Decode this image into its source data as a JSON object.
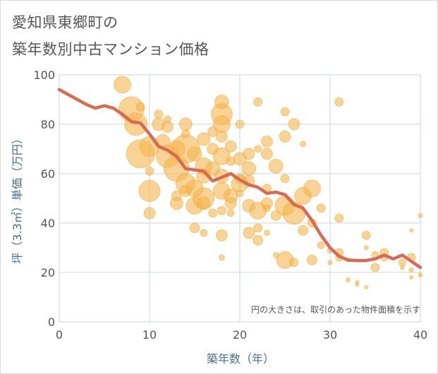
{
  "title_line1": "愛知県東郷町の",
  "title_line2": "築年数別中古マンション価格",
  "colors": {
    "bubble_fill": "#f5b54f",
    "bubble_stroke": "#f0a530",
    "line": "#d96a52",
    "grid": "#c8d6e2",
    "axis_label": "#4a6f8a"
  },
  "chart_data": {
    "type": "scatter",
    "xlabel": "築年数（年）",
    "ylabel": "坪（3.3㎡）単価（万円）",
    "xlim": [
      0,
      40
    ],
    "ylim": [
      0,
      100
    ],
    "xticks": [
      "0",
      "10",
      "20",
      "30",
      "40"
    ],
    "yticks": [
      "0",
      "20",
      "40",
      "60",
      "80",
      "100"
    ],
    "grid": true,
    "note": "円の大きさは、取引のあった物件面積を示す",
    "trend_line": {
      "x": [
        0,
        1,
        2,
        3,
        4,
        5,
        6,
        7,
        8,
        9,
        10,
        11,
        12,
        13,
        14,
        15,
        16,
        17,
        18,
        19,
        20,
        21,
        22,
        23,
        24,
        25,
        26,
        27,
        28,
        29,
        30,
        31,
        32,
        33,
        34,
        35,
        36,
        37,
        38,
        39,
        40
      ],
      "y": [
        94,
        92,
        90,
        88,
        86.5,
        87.5,
        86.5,
        84,
        81,
        80.5,
        76,
        71,
        69.5,
        67,
        62,
        61.5,
        61,
        57,
        58.5,
        60,
        57.5,
        55.5,
        54.5,
        52,
        52.5,
        51.5,
        47.5,
        46,
        41,
        35,
        30,
        26.5,
        25,
        24.8,
        24.8,
        25.5,
        27,
        25.5,
        27,
        24.5,
        22
      ]
    },
    "bubbles": [
      {
        "x": 7,
        "y": 96,
        "s": 12
      },
      {
        "x": 8,
        "y": 86,
        "s": 18
      },
      {
        "x": 9,
        "y": 87,
        "s": 6
      },
      {
        "x": 8.5,
        "y": 80,
        "s": 16
      },
      {
        "x": 9,
        "y": 68,
        "s": 20
      },
      {
        "x": 10,
        "y": 71,
        "s": 14
      },
      {
        "x": 10,
        "y": 61,
        "s": 6
      },
      {
        "x": 10,
        "y": 53,
        "s": 15
      },
      {
        "x": 10,
        "y": 44,
        "s": 8
      },
      {
        "x": 11,
        "y": 84,
        "s": 6
      },
      {
        "x": 11,
        "y": 80,
        "s": 9
      },
      {
        "x": 11.5,
        "y": 73,
        "s": 10
      },
      {
        "x": 12,
        "y": 79,
        "s": 8
      },
      {
        "x": 12,
        "y": 67,
        "s": 16
      },
      {
        "x": 12,
        "y": 82,
        "s": 5
      },
      {
        "x": 13,
        "y": 62,
        "s": 18
      },
      {
        "x": 13,
        "y": 70,
        "s": 12
      },
      {
        "x": 13,
        "y": 48,
        "s": 9
      },
      {
        "x": 13,
        "y": 51,
        "s": 7
      },
      {
        "x": 14,
        "y": 80,
        "s": 9
      },
      {
        "x": 14,
        "y": 76,
        "s": 6
      },
      {
        "x": 14,
        "y": 70,
        "s": 20
      },
      {
        "x": 14,
        "y": 56,
        "s": 14
      },
      {
        "x": 14,
        "y": 53,
        "s": 8
      },
      {
        "x": 15,
        "y": 68,
        "s": 10
      },
      {
        "x": 15,
        "y": 54,
        "s": 12
      },
      {
        "x": 15,
        "y": 47,
        "s": 12
      },
      {
        "x": 15,
        "y": 38,
        "s": 7
      },
      {
        "x": 16,
        "y": 74,
        "s": 9
      },
      {
        "x": 16,
        "y": 63,
        "s": 12
      },
      {
        "x": 16,
        "y": 59,
        "s": 10
      },
      {
        "x": 16,
        "y": 50,
        "s": 15
      },
      {
        "x": 16,
        "y": 48,
        "s": 9
      },
      {
        "x": 16,
        "y": 36,
        "s": 5
      },
      {
        "x": 17,
        "y": 77,
        "s": 7
      },
      {
        "x": 17,
        "y": 70,
        "s": 8
      },
      {
        "x": 17,
        "y": 62,
        "s": 10
      },
      {
        "x": 17,
        "y": 44,
        "s": 6
      },
      {
        "x": 18,
        "y": 89,
        "s": 10
      },
      {
        "x": 18,
        "y": 84,
        "s": 15
      },
      {
        "x": 18,
        "y": 80,
        "s": 12
      },
      {
        "x": 18,
        "y": 75,
        "s": 8
      },
      {
        "x": 18,
        "y": 67,
        "s": 12
      },
      {
        "x": 18,
        "y": 59,
        "s": 10
      },
      {
        "x": 18,
        "y": 53,
        "s": 12
      },
      {
        "x": 18,
        "y": 45,
        "s": 6
      },
      {
        "x": 18,
        "y": 35,
        "s": 8
      },
      {
        "x": 18,
        "y": 26,
        "s": 4
      },
      {
        "x": 19,
        "y": 71,
        "s": 8
      },
      {
        "x": 19,
        "y": 65,
        "s": 6
      },
      {
        "x": 19,
        "y": 51,
        "s": 10
      },
      {
        "x": 19,
        "y": 48,
        "s": 8
      },
      {
        "x": 19,
        "y": 44,
        "s": 5
      },
      {
        "x": 20,
        "y": 80,
        "s": 6
      },
      {
        "x": 20,
        "y": 66,
        "s": 9
      },
      {
        "x": 20,
        "y": 58,
        "s": 7
      },
      {
        "x": 20,
        "y": 56,
        "s": 12
      },
      {
        "x": 20,
        "y": 52,
        "s": 5
      },
      {
        "x": 21,
        "y": 68,
        "s": 8
      },
      {
        "x": 21,
        "y": 62,
        "s": 10
      },
      {
        "x": 21,
        "y": 57,
        "s": 8
      },
      {
        "x": 21,
        "y": 47,
        "s": 9
      },
      {
        "x": 21,
        "y": 36,
        "s": 8
      },
      {
        "x": 22,
        "y": 89,
        "s": 6
      },
      {
        "x": 22,
        "y": 70,
        "s": 5
      },
      {
        "x": 22,
        "y": 45,
        "s": 12
      },
      {
        "x": 22,
        "y": 38,
        "s": 6
      },
      {
        "x": 22,
        "y": 33,
        "s": 7
      },
      {
        "x": 23,
        "y": 73,
        "s": 8
      },
      {
        "x": 23,
        "y": 68,
        "s": 8
      },
      {
        "x": 23,
        "y": 54,
        "s": 6
      },
      {
        "x": 23,
        "y": 48,
        "s": 8
      },
      {
        "x": 23,
        "y": 46,
        "s": 5
      },
      {
        "x": 23,
        "y": 36,
        "s": 4
      },
      {
        "x": 24,
        "y": 63,
        "s": 10
      },
      {
        "x": 24,
        "y": 43,
        "s": 7
      },
      {
        "x": 24,
        "y": 27,
        "s": 4
      },
      {
        "x": 25,
        "y": 85,
        "s": 6
      },
      {
        "x": 25,
        "y": 75,
        "s": 8
      },
      {
        "x": 25,
        "y": 58,
        "s": 6
      },
      {
        "x": 25,
        "y": 47,
        "s": 14
      },
      {
        "x": 25,
        "y": 25,
        "s": 12
      },
      {
        "x": 26,
        "y": 80,
        "s": 8
      },
      {
        "x": 26,
        "y": 44,
        "s": 16
      },
      {
        "x": 26,
        "y": 24,
        "s": 6
      },
      {
        "x": 27,
        "y": 72,
        "s": 4
      },
      {
        "x": 27,
        "y": 51,
        "s": 12
      },
      {
        "x": 27,
        "y": 37,
        "s": 7
      },
      {
        "x": 28,
        "y": 54,
        "s": 12
      },
      {
        "x": 28,
        "y": 40,
        "s": 6
      },
      {
        "x": 28,
        "y": 25,
        "s": 7
      },
      {
        "x": 29,
        "y": 46,
        "s": 6
      },
      {
        "x": 29,
        "y": 31,
        "s": 5
      },
      {
        "x": 30,
        "y": 29,
        "s": 4
      },
      {
        "x": 30,
        "y": 24,
        "s": 3
      },
      {
        "x": 31,
        "y": 89,
        "s": 6
      },
      {
        "x": 31,
        "y": 42,
        "s": 6
      },
      {
        "x": 31,
        "y": 28,
        "s": 6
      },
      {
        "x": 31,
        "y": 26,
        "s": 5
      },
      {
        "x": 32,
        "y": 25,
        "s": 3
      },
      {
        "x": 32,
        "y": 17,
        "s": 3
      },
      {
        "x": 33,
        "y": 16,
        "s": 2.5
      },
      {
        "x": 33,
        "y": 15,
        "s": 2.5
      },
      {
        "x": 34,
        "y": 35,
        "s": 6
      },
      {
        "x": 34,
        "y": 30,
        "s": 3
      },
      {
        "x": 34,
        "y": 14,
        "s": 2.5
      },
      {
        "x": 35,
        "y": 27,
        "s": 5
      },
      {
        "x": 35,
        "y": 22,
        "s": 6
      },
      {
        "x": 36,
        "y": 28,
        "s": 6
      },
      {
        "x": 36,
        "y": 26,
        "s": 5
      },
      {
        "x": 38,
        "y": 24,
        "s": 5
      },
      {
        "x": 38,
        "y": 22,
        "s": 3
      },
      {
        "x": 39,
        "y": 37,
        "s": 2.5
      },
      {
        "x": 39,
        "y": 26,
        "s": 6
      },
      {
        "x": 39,
        "y": 21,
        "s": 3
      },
      {
        "x": 39,
        "y": 18,
        "s": 2.5
      },
      {
        "x": 40,
        "y": 43,
        "s": 3
      },
      {
        "x": 40,
        "y": 19,
        "s": 3
      }
    ]
  }
}
